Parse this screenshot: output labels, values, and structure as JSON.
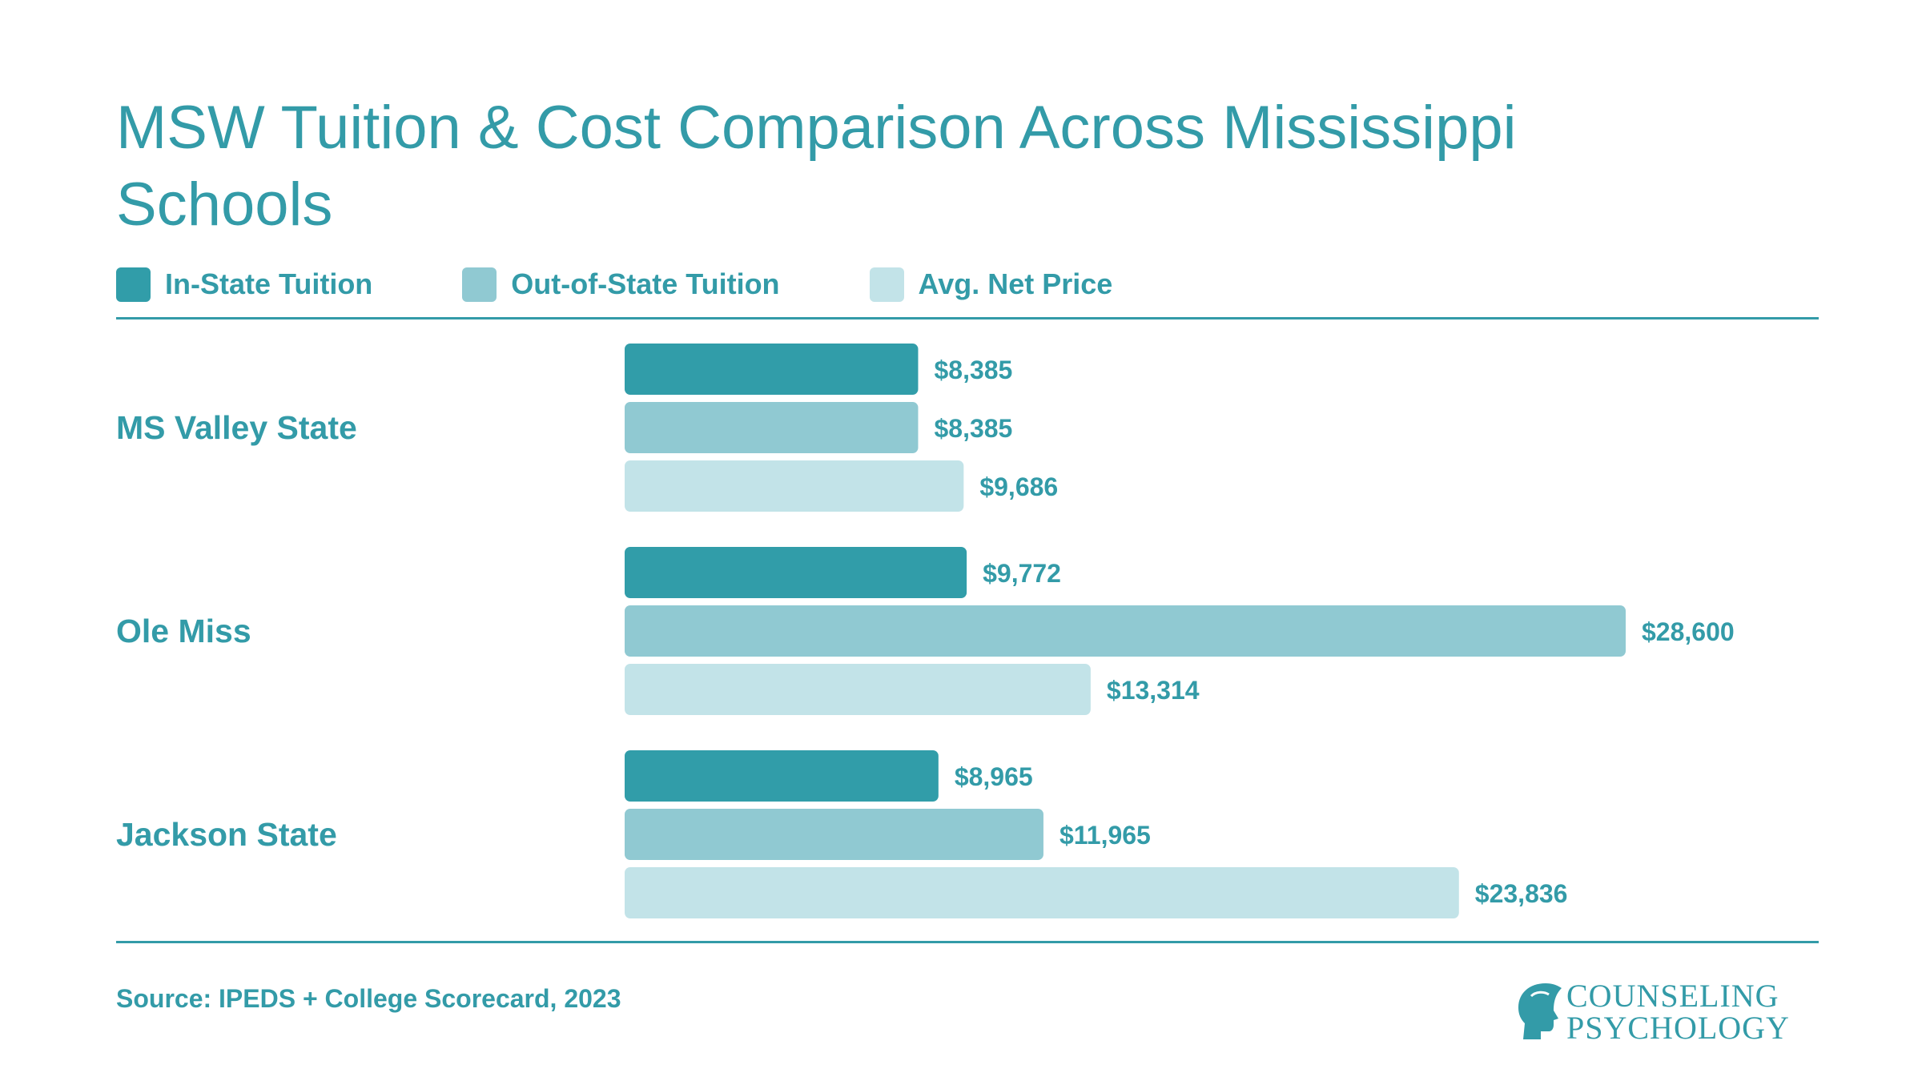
{
  "title": "MSW Tuition & Cost Comparison Across Mississippi Schools",
  "source": "Source: IPEDS + College Scorecard, 2023",
  "logo": {
    "line1": "COUNSELING",
    "line2": "PSYCHOLOGY"
  },
  "colors": {
    "accent": "#339ba8",
    "in_state": "#319da9",
    "out_of_state": "#90c9d2",
    "net_price": "#c2e3e8"
  },
  "legend": [
    {
      "label": "In-State Tuition",
      "color": "#319da9"
    },
    {
      "label": "Out-of-State Tuition",
      "color": "#90c9d2"
    },
    {
      "label": "Avg. Net Price",
      "color": "#c2e3e8"
    }
  ],
  "chart_data": {
    "type": "bar",
    "orientation": "horizontal",
    "categories": [
      "MS Valley State",
      "Ole Miss",
      "Jackson State"
    ],
    "series": [
      {
        "name": "In-State Tuition",
        "values": [
          8385,
          9772,
          8965
        ],
        "labels": [
          "$8,385",
          "$9,772",
          "$8,965"
        ]
      },
      {
        "name": "Out-of-State Tuition",
        "values": [
          8385,
          28600,
          11965
        ],
        "labels": [
          "$8,385",
          "$28,600",
          "$11,965"
        ]
      },
      {
        "name": "Avg. Net Price",
        "values": [
          9686,
          13314,
          23836
        ],
        "labels": [
          "$9,686",
          "$13,314",
          "$23,836"
        ]
      }
    ],
    "title": "MSW Tuition & Cost Comparison Across Mississippi Schools",
    "xlabel": "",
    "ylabel": "",
    "xlim": [
      0,
      28600
    ],
    "grid": false,
    "legend_position": "top-left"
  }
}
